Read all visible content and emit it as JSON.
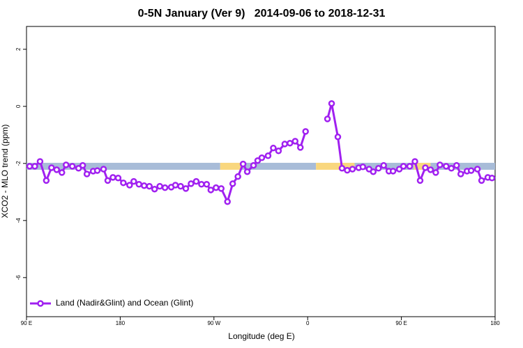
{
  "chart_data": {
    "type": "line",
    "title": "0-5N January (Ver 9)   2014-09-06 to 2018-12-31",
    "x_label": "Longitude (deg E)",
    "y_label": "XCO2 - MLO trend (ppm)",
    "xlim": [
      90,
      540
    ],
    "xticks": [
      {
        "value": 90,
        "label": "90 E"
      },
      {
        "value": 180,
        "label": "180"
      },
      {
        "value": 270,
        "label": "90 W"
      },
      {
        "value": 360,
        "label": "0"
      },
      {
        "value": 450,
        "label": "90 E"
      },
      {
        "value": 540,
        "label": "180"
      }
    ],
    "ylim": [
      -7.37,
      2.8
    ],
    "yticks": [
      2,
      0,
      -2,
      -4,
      -6
    ],
    "legend_position": "bottomleft",
    "band": {
      "y": -2.1,
      "segments": [
        {
          "x": [
            90,
            276
          ],
          "color": "#a8bcd8"
        },
        {
          "x": [
            276,
            296
          ],
          "color": "#f9d77e"
        },
        {
          "x": [
            296,
            368
          ],
          "color": "#a8bcd8"
        },
        {
          "x": [
            368,
            405
          ],
          "color": "#f9d77e"
        },
        {
          "x": [
            405,
            462
          ],
          "color": "#a8bcd8"
        },
        {
          "x": [
            462,
            478
          ],
          "color": "#f9d77e"
        },
        {
          "x": [
            478,
            540
          ],
          "color": "#a8bcd8"
        }
      ]
    },
    "x": [
      93,
      98,
      103,
      109,
      114,
      119,
      124,
      128,
      134,
      140,
      144,
      148,
      154,
      158,
      164,
      168,
      173,
      178,
      183,
      189,
      193,
      198,
      203,
      208,
      213,
      218,
      223,
      229,
      233,
      238,
      243,
      248,
      253,
      258,
      263,
      267,
      272,
      277,
      283,
      288,
      293,
      298,
      302,
      308,
      312,
      316,
      322,
      327,
      332,
      338,
      343,
      348,
      353,
      358,
      368,
      379,
      383,
      389,
      393,
      398,
      403,
      409,
      413,
      419,
      423,
      428,
      433,
      438,
      442,
      448,
      452,
      458,
      463,
      468,
      473,
      478,
      483,
      487,
      493,
      498,
      503,
      507,
      513,
      517,
      523,
      527,
      533,
      537
    ],
    "series": [
      {
        "name": "Land (Nadir&Glint) and Ocean (Glint)",
        "color": "#a020f0",
        "values": [
          -2.1,
          -2.1,
          -1.93,
          -2.6,
          -2.15,
          -2.22,
          -2.32,
          -2.05,
          -2.1,
          -2.17,
          -2.07,
          -2.37,
          -2.27,
          -2.25,
          -2.2,
          -2.6,
          -2.49,
          -2.51,
          -2.68,
          -2.76,
          -2.63,
          -2.73,
          -2.78,
          -2.8,
          -2.9,
          -2.8,
          -2.85,
          -2.83,
          -2.76,
          -2.8,
          -2.88,
          -2.71,
          -2.63,
          -2.73,
          -2.73,
          -2.93,
          -2.85,
          -2.88,
          -3.34,
          -2.71,
          -2.46,
          -2.02,
          -2.29,
          -2.07,
          -1.9,
          -1.8,
          -1.73,
          -1.46,
          -1.56,
          -1.32,
          -1.29,
          -1.22,
          -1.44,
          -0.88,
          null,
          -0.44,
          0.1,
          -1.07,
          -2.17,
          -2.24,
          -2.2,
          -2.15,
          -2.12,
          -2.2,
          -2.29,
          -2.17,
          -2.07,
          -2.27,
          -2.27,
          -2.2,
          -2.1,
          -2.1,
          -1.93,
          -2.6,
          -2.15,
          -2.22,
          -2.32,
          -2.05,
          -2.1,
          -2.17,
          -2.07,
          -2.37,
          -2.27,
          -2.25,
          -2.2,
          -2.6,
          -2.49,
          -2.51
        ]
      }
    ]
  }
}
